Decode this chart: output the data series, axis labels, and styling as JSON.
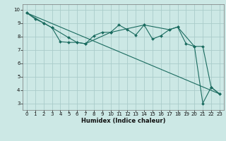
{
  "bg_color": "#cce8e5",
  "grid_color": "#aaccca",
  "line_color": "#1a6b5f",
  "xlabel": "Humidex (Indice chaleur)",
  "xlim": [
    -0.5,
    23.5
  ],
  "ylim": [
    2.5,
    10.4
  ],
  "yticks": [
    3,
    4,
    5,
    6,
    7,
    8,
    9,
    10
  ],
  "xticks": [
    0,
    1,
    2,
    3,
    4,
    5,
    6,
    7,
    8,
    9,
    10,
    11,
    12,
    13,
    14,
    15,
    16,
    17,
    18,
    19,
    20,
    21,
    22,
    23
  ],
  "line1_x": [
    0,
    1,
    2,
    3,
    4,
    5,
    6,
    7,
    8,
    9,
    10,
    11,
    12,
    13,
    14,
    15,
    16,
    17,
    18,
    19,
    20,
    21,
    22,
    23
  ],
  "line1_y": [
    9.75,
    9.3,
    9.0,
    8.65,
    7.6,
    7.55,
    7.55,
    7.45,
    8.05,
    8.3,
    8.3,
    8.85,
    8.5,
    8.1,
    8.85,
    7.8,
    8.05,
    8.5,
    8.7,
    7.45,
    7.25,
    7.25,
    4.2,
    3.7
  ],
  "line2_x": [
    0,
    23
  ],
  "line2_y": [
    9.75,
    3.7
  ],
  "line3_x": [
    0,
    2,
    3,
    5,
    6,
    7,
    10,
    14,
    17,
    18,
    20,
    21,
    22,
    23
  ],
  "line3_y": [
    9.75,
    9.0,
    8.65,
    7.9,
    7.55,
    7.45,
    8.3,
    8.85,
    8.5,
    8.7,
    7.25,
    3.0,
    4.2,
    3.7
  ],
  "tick_fontsize": 5.0,
  "xlabel_fontsize": 6.0
}
